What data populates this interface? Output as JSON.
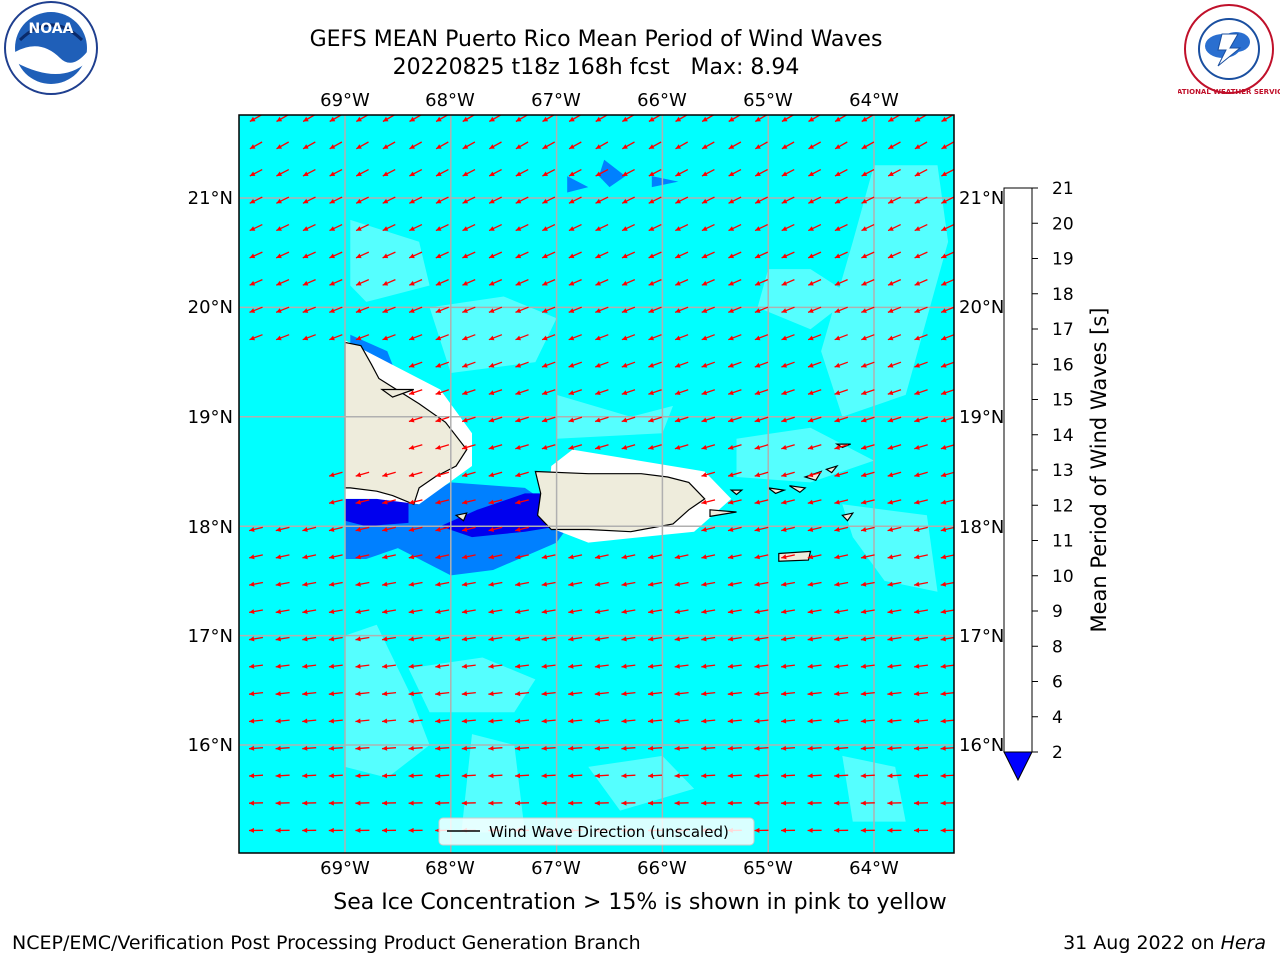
{
  "title": {
    "line1": "GEFS MEAN Puerto Rico Mean Period of Wind Waves",
    "line2": "20220825 t18z 168h fcst   Max: 8.94"
  },
  "map": {
    "lon_labels": [
      "69°W",
      "68°W",
      "67°W",
      "66°W",
      "65°W",
      "64°W"
    ],
    "lat_labels": [
      "21°N",
      "20°N",
      "19°N",
      "18°N",
      "17°N",
      "16°N"
    ],
    "legend_label": "Wind Wave Direction (unscaled)",
    "colors": {
      "ocean": "#00ffff",
      "light_cyan": "#55ffff",
      "blue": "#0080ff",
      "dark_blue": "#0000ee",
      "land": "#eeecdc",
      "arrow": "#ff0000",
      "grid": "#b0b0b0"
    }
  },
  "colorbar": {
    "label": "Mean Period of Wind Waves [s]",
    "ticks": [
      "2",
      "4",
      "6",
      "8",
      "9",
      "10",
      "11",
      "12",
      "13",
      "14",
      "15",
      "16",
      "17",
      "18",
      "19",
      "20",
      "21"
    ],
    "colors": [
      "#0080ff",
      "#00ffff",
      "#55ffff",
      "#aaffff",
      "#55ff80",
      "#00ff00",
      "#55ee00",
      "#99ee00",
      "#ccff00",
      "#eeff00",
      "#ffff00",
      "#ffcc00",
      "#ffaa00",
      "#ff8800",
      "#ff5500",
      "#ff2200",
      "#ff0000"
    ],
    "under_color": "#0000ff"
  },
  "caption": "Sea Ice Concentration > 15% is shown in pink to yellow",
  "footer": {
    "left": "NCEP/EMC/Verification Post Processing Product Generation Branch",
    "right_date": "31 Aug 2022 on ",
    "right_machine": "Hera"
  },
  "logos": {
    "noaa_text": "NOAA",
    "nws_text": "NATIONAL WEATHER SERVICE"
  }
}
